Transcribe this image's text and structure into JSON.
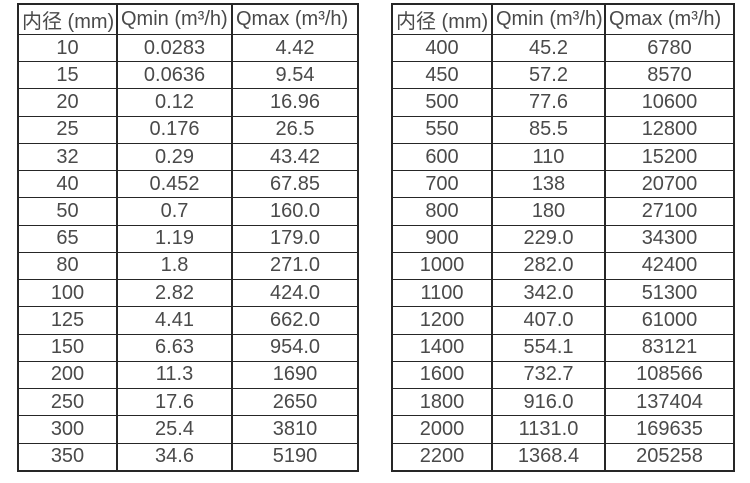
{
  "page": {
    "background": "#ffffff",
    "text_color": "#4a4a4a",
    "border_color": "#262626",
    "description": "Two side-by-side flow meter specification tables: inner diameter vs minimum and maximum flow rate"
  },
  "tables": [
    {
      "name": "small-diameter-flow-table",
      "headers": [
        "内径 (mm)",
        "Qmin (m³/h)",
        "Qmax (m³/h)"
      ],
      "rows": [
        [
          "10",
          "0.0283",
          "4.42"
        ],
        [
          "15",
          "0.0636",
          "9.54"
        ],
        [
          "20",
          "0.12",
          "16.96"
        ],
        [
          "25",
          "0.176",
          "26.5"
        ],
        [
          "32",
          "0.29",
          "43.42"
        ],
        [
          "40",
          "0.452",
          "67.85"
        ],
        [
          "50",
          "0.7",
          "160.0"
        ],
        [
          "65",
          "1.19",
          "179.0"
        ],
        [
          "80",
          "1.8",
          "271.0"
        ],
        [
          "100",
          "2.82",
          "424.0"
        ],
        [
          "125",
          "4.41",
          "662.0"
        ],
        [
          "150",
          "6.63",
          "954.0"
        ],
        [
          "200",
          "11.3",
          "1690"
        ],
        [
          "250",
          "17.6",
          "2650"
        ],
        [
          "300",
          "25.4",
          "3810"
        ],
        [
          "350",
          "34.6",
          "5190"
        ]
      ]
    },
    {
      "name": "large-diameter-flow-table",
      "headers": [
        "内径 (mm)",
        "Qmin (m³/h)",
        "Qmax (m³/h)"
      ],
      "rows": [
        [
          "400",
          "45.2",
          "6780"
        ],
        [
          "450",
          "57.2",
          "8570"
        ],
        [
          "500",
          "77.6",
          "10600"
        ],
        [
          "550",
          "85.5",
          "12800"
        ],
        [
          "600",
          "110",
          "15200"
        ],
        [
          "700",
          "138",
          "20700"
        ],
        [
          "800",
          "180",
          "27100"
        ],
        [
          "900",
          "229.0",
          "34300"
        ],
        [
          "1000",
          "282.0",
          "42400"
        ],
        [
          "1100",
          "342.0",
          "51300"
        ],
        [
          "1200",
          "407.0",
          "61000"
        ],
        [
          "1400",
          "554.1",
          "83121"
        ],
        [
          "1600",
          "732.7",
          "108566"
        ],
        [
          "1800",
          "916.0",
          "137404"
        ],
        [
          "2000",
          "1131.0",
          "169635"
        ],
        [
          "2200",
          "1368.4",
          "205258"
        ]
      ]
    }
  ]
}
